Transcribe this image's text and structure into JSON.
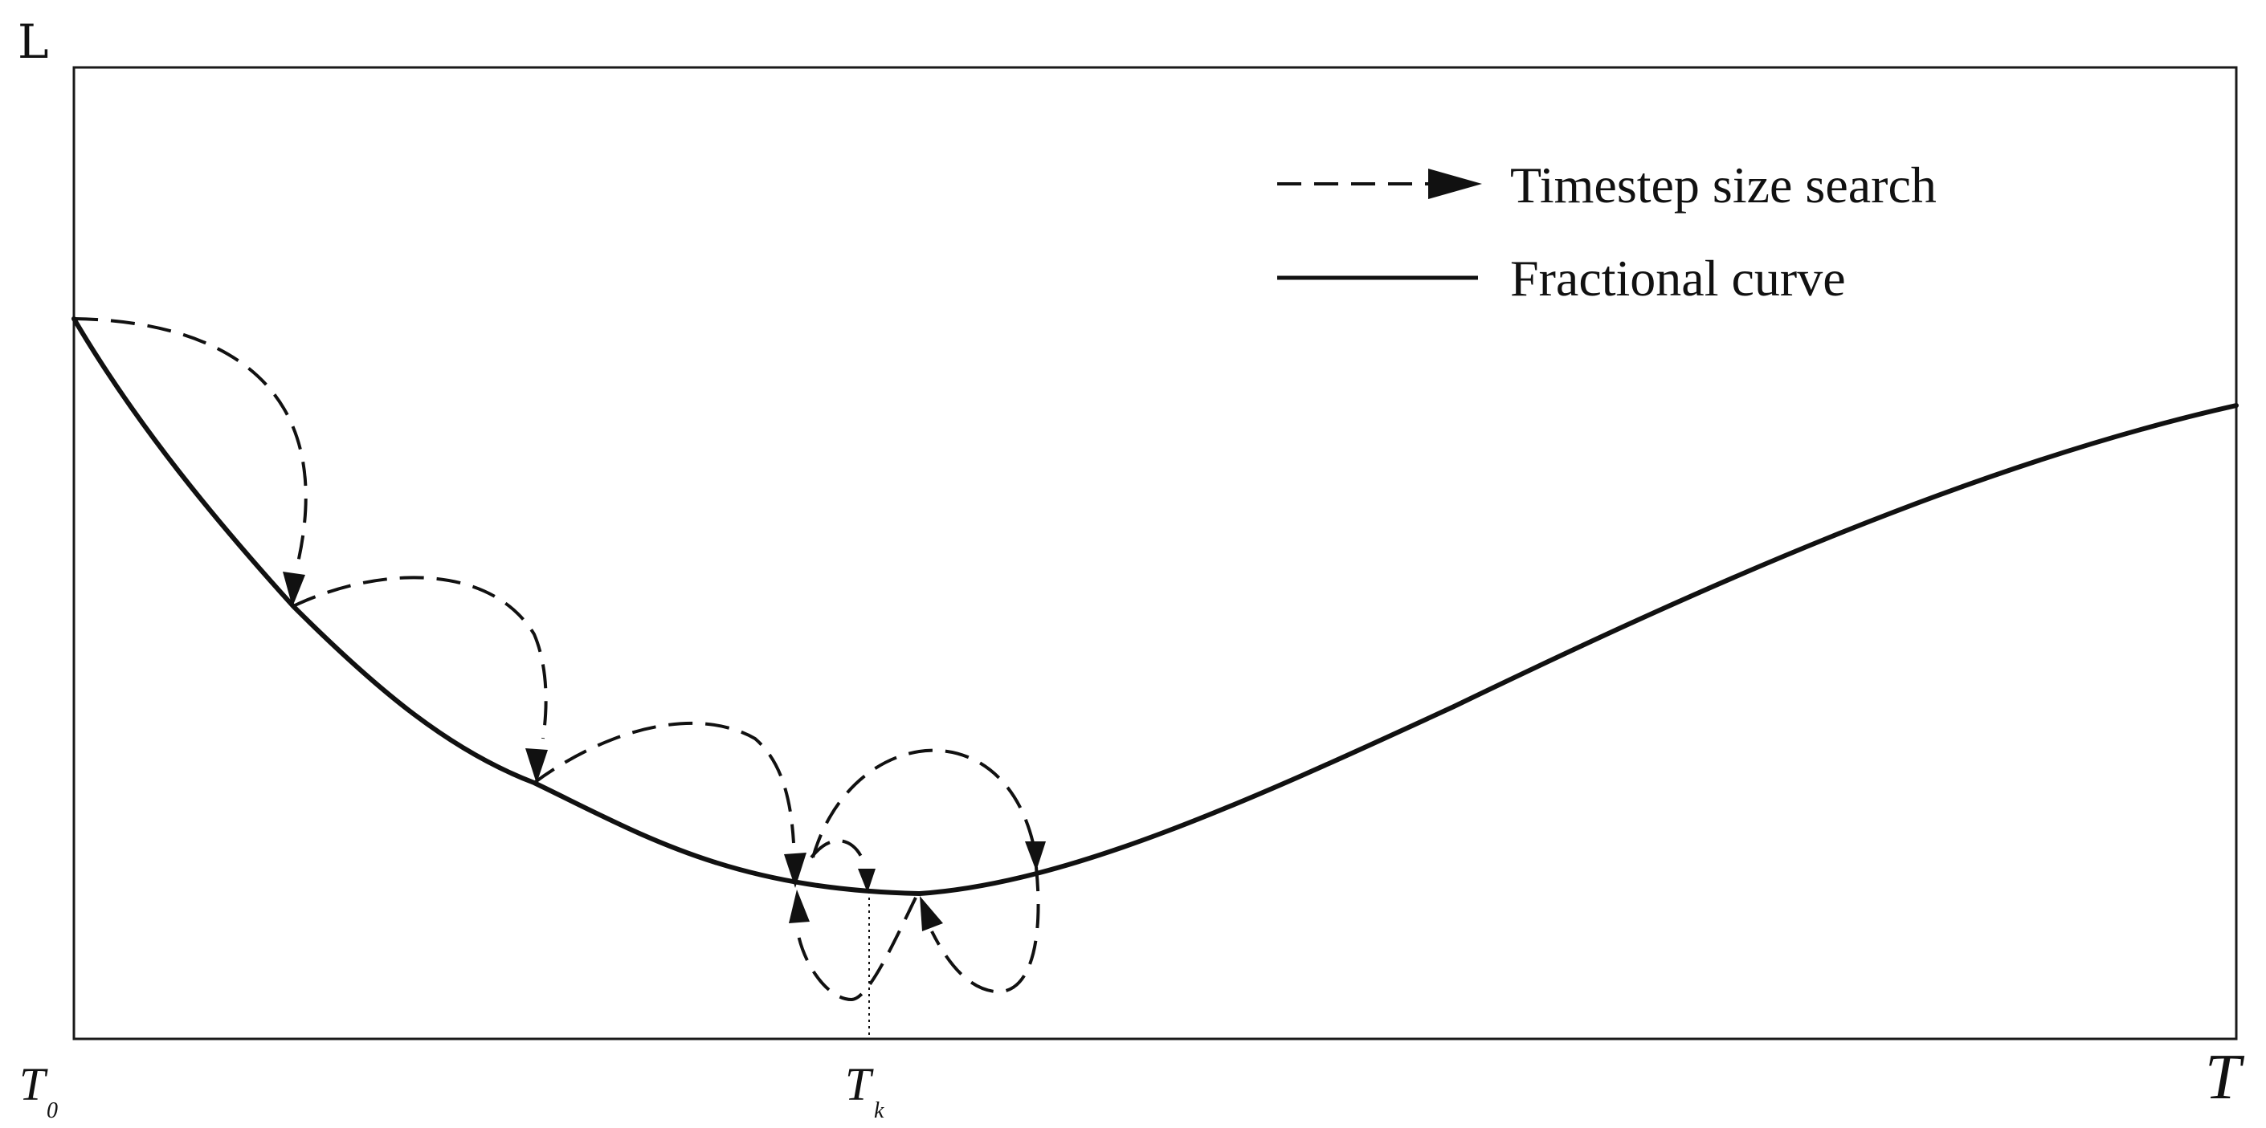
{
  "y_axis": {
    "label": "L"
  },
  "x_axis": {
    "end_label": "T",
    "ticks": [
      {
        "main": "T",
        "sub": "0"
      },
      {
        "main": "T",
        "sub": "k"
      }
    ]
  },
  "legend": {
    "items": [
      {
        "label": "Timestep size search",
        "style": "dashed-arrow"
      },
      {
        "label": "Fractional curve",
        "style": "solid"
      }
    ]
  },
  "colors": {
    "ink": "#111111",
    "background": "#ffffff"
  }
}
